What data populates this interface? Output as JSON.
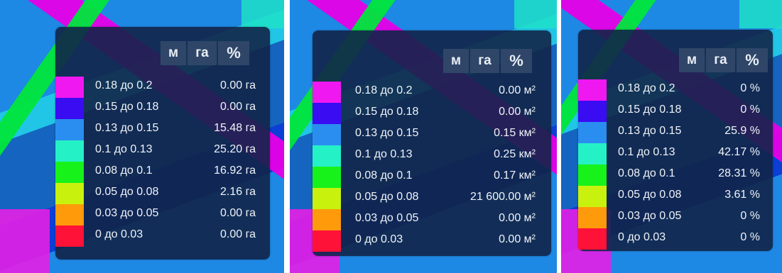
{
  "legend_rows": [
    {
      "label": "0.18 до 0.2",
      "color": "#f018f0"
    },
    {
      "label": "0.15 до 0.18",
      "color": "#3a0cf2"
    },
    {
      "label": "0.13 до 0.15",
      "color": "#2a8ef0"
    },
    {
      "label": "0.1 до 0.13",
      "color": "#25f1c6"
    },
    {
      "label": "0.08 до 0.1",
      "color": "#17f21b"
    },
    {
      "label": "0.05 до 0.08",
      "color": "#c8f20d"
    },
    {
      "label": "0.03 до 0.05",
      "color": "#ff9a0a"
    },
    {
      "label": "0 до 0.03",
      "color": "#ff1238"
    }
  ],
  "panels": [
    {
      "units": {
        "m": "м",
        "ha": "га",
        "pct": "%"
      },
      "values": [
        "0.00 га",
        "0.00 га",
        "15.48 га",
        "25.20 га",
        "16.92 га",
        "2.16 га",
        "0.00 га",
        "0.00 га"
      ]
    },
    {
      "units": {
        "m": "м",
        "ha": "га",
        "pct": "%"
      },
      "values": [
        "0.00 м²",
        "0.00 м²",
        "0.15 км²",
        "0.25 км²",
        "0.17 км²",
        "21 600.00 м²",
        "0.00 м²",
        "0.00 м²"
      ]
    },
    {
      "units": {
        "m": "м",
        "ha": "га",
        "pct": "%"
      },
      "values": [
        "0 %",
        "0 %",
        "25.9 %",
        "42.17 %",
        "28.31 %",
        "3.61 %",
        "0 %",
        "0 %"
      ]
    }
  ]
}
